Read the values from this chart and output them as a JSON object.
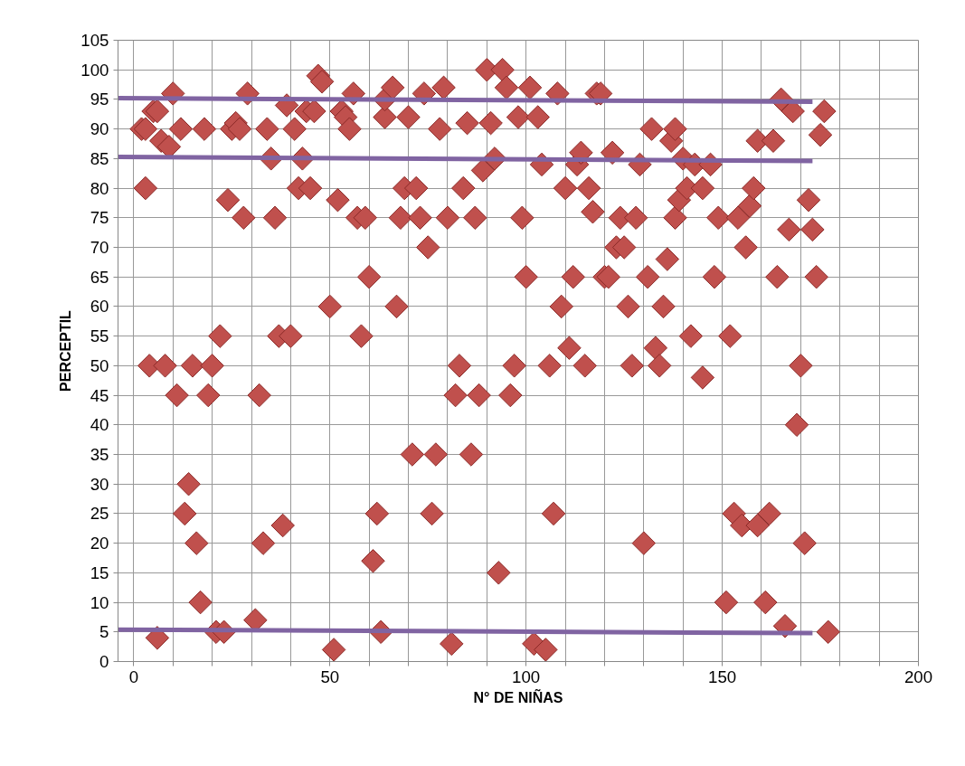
{
  "chart_data": {
    "type": "scatter",
    "xlabel": "N° DE NIÑAS",
    "ylabel": "PERCEPTIL",
    "marker": "diamond",
    "grid": true,
    "xlim": [
      -4,
      200
    ],
    "ylim": [
      0,
      105
    ],
    "xticks": [
      0,
      {
        "value": 10,
        "label": null
      },
      {
        "value": 20,
        "label": null
      },
      {
        "value": 30,
        "label": null
      },
      {
        "value": 40,
        "label": null
      },
      50,
      {
        "value": 60,
        "label": null
      },
      {
        "value": 70,
        "label": null
      },
      {
        "value": 80,
        "label": null
      },
      {
        "value": 90,
        "label": null
      },
      100,
      {
        "value": 110,
        "label": null
      },
      {
        "value": 120,
        "label": null
      },
      {
        "value": 130,
        "label": null
      },
      {
        "value": 140,
        "label": null
      },
      150,
      {
        "value": 160,
        "label": null
      },
      {
        "value": 170,
        "label": null
      },
      {
        "value": 180,
        "label": null
      },
      {
        "value": 190,
        "label": null
      },
      200
    ],
    "yticks": [
      0,
      5,
      10,
      15,
      20,
      25,
      30,
      35,
      40,
      45,
      50,
      55,
      60,
      65,
      70,
      75,
      80,
      85,
      90,
      95,
      100,
      105
    ],
    "series": [
      {
        "color": "#c0504d",
        "x": [
          2,
          3,
          3,
          4,
          5,
          6,
          6,
          7,
          8,
          9,
          10,
          11,
          12,
          13,
          14,
          15,
          16,
          17,
          18,
          19,
          20,
          21,
          22,
          23,
          24,
          25,
          26,
          27,
          28,
          29,
          31,
          32,
          33,
          34,
          35,
          36,
          37,
          38,
          39,
          40,
          41,
          42,
          43,
          44,
          45,
          46,
          47,
          48,
          50,
          51,
          52,
          53,
          54,
          55,
          56,
          57,
          58,
          59,
          60,
          61,
          62,
          63,
          64,
          64,
          66,
          67,
          68,
          69,
          70,
          71,
          72,
          73,
          74,
          75,
          76,
          77,
          78,
          79,
          80,
          81,
          82,
          83,
          84,
          85,
          86,
          87,
          88,
          89,
          90,
          91,
          92,
          93,
          94,
          95,
          96,
          97,
          98,
          99,
          100,
          101,
          102,
          103,
          104,
          105,
          106,
          107,
          108,
          109,
          110,
          111,
          112,
          113,
          114,
          115,
          116,
          117,
          118,
          119,
          120,
          121,
          122,
          123,
          124,
          125,
          126,
          127,
          128,
          129,
          130,
          131,
          132,
          133,
          134,
          135,
          136,
          137,
          138,
          138,
          139,
          140,
          141,
          142,
          143,
          145,
          145,
          147,
          148,
          149,
          151,
          152,
          153,
          154,
          155,
          156,
          157,
          158,
          159,
          159,
          161,
          162,
          163,
          164,
          165,
          166,
          167,
          168,
          169,
          170,
          171,
          172,
          173,
          174,
          175,
          176,
          177
        ],
        "values": [
          90,
          90,
          80,
          50,
          93,
          4,
          93,
          88,
          50,
          87,
          96,
          45,
          90,
          25,
          30,
          50,
          20,
          10,
          90,
          45,
          50,
          5,
          55,
          5,
          78,
          90,
          91,
          90,
          75,
          96,
          7,
          45,
          20,
          90,
          85,
          75,
          55,
          23,
          94,
          55,
          90,
          80,
          85,
          93,
          80,
          93,
          99,
          98,
          60,
          2,
          78,
          93,
          92,
          90,
          96,
          75,
          55,
          75,
          65,
          17,
          25,
          5,
          92,
          95,
          97,
          60,
          75,
          80,
          92,
          35,
          80,
          75,
          96,
          70,
          25,
          35,
          90,
          97,
          75,
          3,
          45,
          50,
          80,
          91,
          35,
          75,
          45,
          83,
          100,
          91,
          85,
          15,
          100,
          97,
          45,
          50,
          92,
          75,
          65,
          97,
          3,
          92,
          84,
          2,
          50,
          25,
          96,
          60,
          80,
          53,
          65,
          84,
          86,
          50,
          80,
          76,
          96,
          96,
          65,
          65,
          86,
          70,
          75,
          70,
          60,
          50,
          75,
          84,
          20,
          65,
          90,
          53,
          50,
          60,
          68,
          88,
          90,
          75,
          78,
          85,
          80,
          55,
          84,
          48,
          80,
          84,
          65,
          75,
          10,
          55,
          25,
          75,
          23,
          70,
          77,
          80,
          88,
          23,
          10,
          25,
          88,
          65,
          95,
          6,
          73,
          93,
          40,
          50,
          20,
          78,
          73,
          65,
          89,
          93,
          5
        ]
      },
      {
        "type": "line",
        "marker": "none",
        "line_style": "solid",
        "color": "#8064a2",
        "x": [
          -4,
          173
        ],
        "values": [
          95.2,
          94.6
        ]
      },
      {
        "type": "line",
        "marker": "none",
        "line_style": "solid",
        "color": "#8064a2",
        "x": [
          -4,
          173
        ],
        "values": [
          85.3,
          84.6
        ]
      },
      {
        "type": "line",
        "marker": "none",
        "line_style": "solid",
        "color": "#8064a2",
        "x": [
          -4,
          173
        ],
        "values": [
          5.4,
          4.8
        ]
      }
    ]
  }
}
